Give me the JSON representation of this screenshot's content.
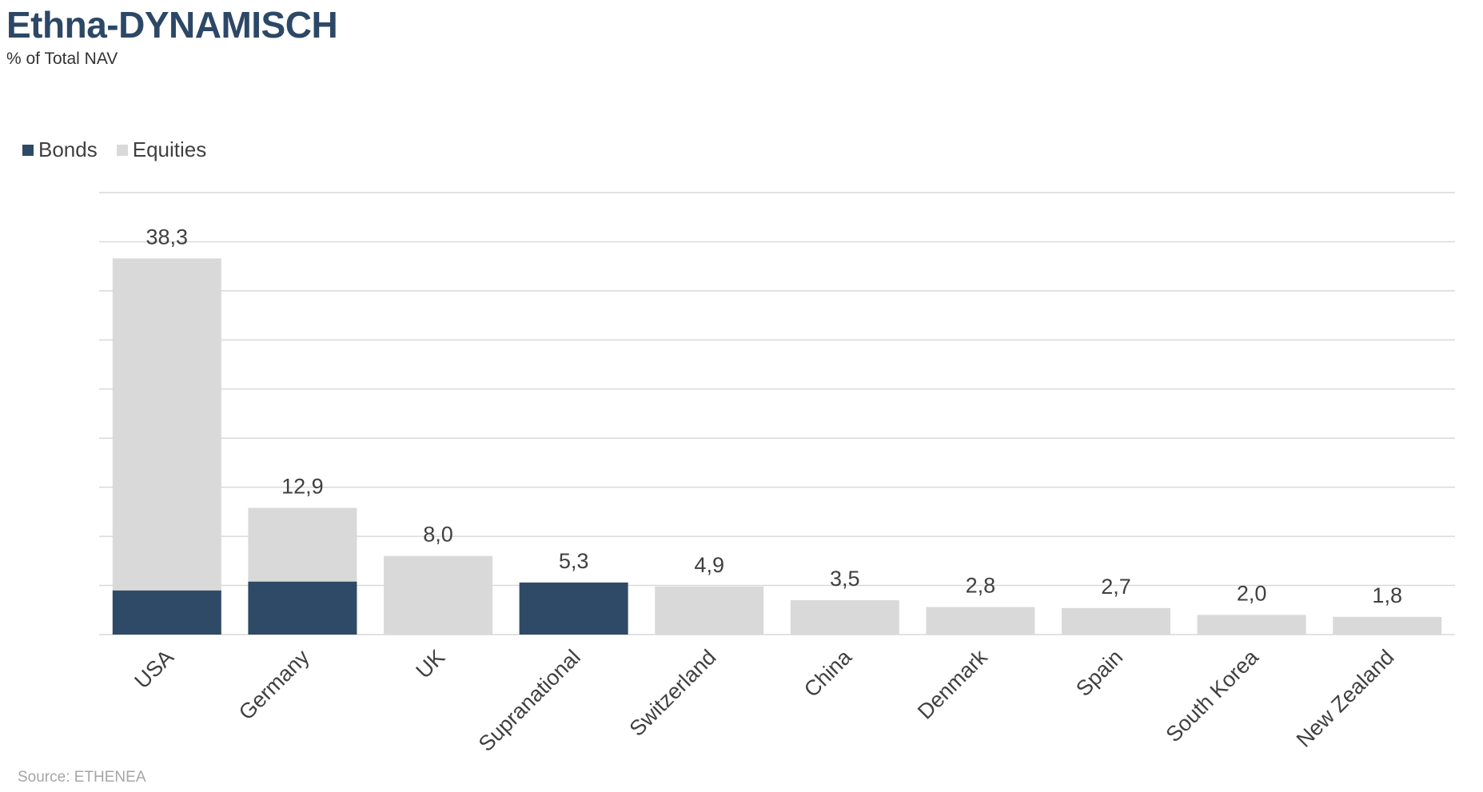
{
  "page": {
    "title": "Ethna-DYNAMISCH",
    "subtitle": "% of Total NAV",
    "source": "Source: ETHENEA"
  },
  "colors": {
    "title": "#2c4866",
    "bonds": "#2e4a66",
    "equities": "#d9d9d9",
    "gridline": "#d9d9d9",
    "label": "#404040"
  },
  "chart_data": {
    "type": "bar",
    "stacked": true,
    "categories": [
      "USA",
      "Germany",
      "UK",
      "Supranational",
      "Switzerland",
      "China",
      "Denmark",
      "Spain",
      "South Korea",
      "New Zealand"
    ],
    "series": [
      {
        "name": "Bonds",
        "values": [
          4.5,
          5.4,
          0,
          5.3,
          0,
          0,
          0,
          0,
          0,
          0
        ]
      },
      {
        "name": "Equities",
        "values": [
          33.8,
          7.5,
          8.0,
          0,
          4.9,
          3.5,
          2.8,
          2.7,
          2.0,
          1.8
        ]
      }
    ],
    "totals": [
      "38,3",
      "12,9",
      "8,0",
      "5,3",
      "4,9",
      "3,5",
      "2,8",
      "2,7",
      "2,0",
      "1,8"
    ],
    "ylim": [
      0,
      45
    ],
    "grid": true,
    "legend_position": "top-left"
  }
}
